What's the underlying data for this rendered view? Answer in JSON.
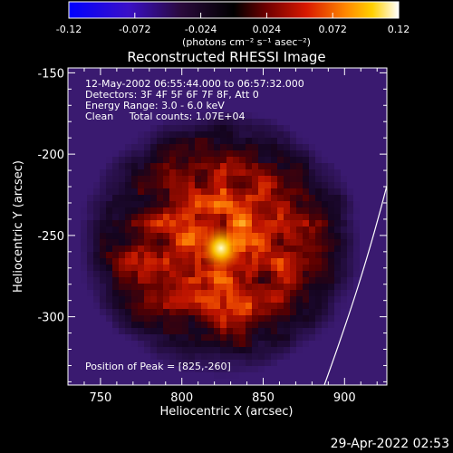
{
  "colorbar": {
    "ticks": [
      "-0.12",
      "-0.072",
      "-0.024",
      "0.024",
      "0.072",
      "0.12"
    ],
    "unit_label": "(photons cm⁻² s⁻¹ asec⁻²)",
    "range": [
      -0.12,
      0.12
    ]
  },
  "annotations": {
    "time_range": "12-May-2002 06:55:44.000 to 06:57:32.000",
    "detectors": "Detectors: 3F 4F 5F 6F 7F 8F, Att 0",
    "energy": "Energy Range: 3.0 - 6.0 keV",
    "clean": "Clean     Total counts: 1.07E+04",
    "peak": "Position of Peak = [825,-260]"
  },
  "footer": {
    "timestamp": "29-Apr-2022 02:53"
  },
  "chart_data": {
    "type": "heatmap",
    "title": "Reconstructed RHESSI Image",
    "xlabel": "Heliocentric X (arcsec)",
    "ylabel": "Heliocentric Y (arcsec)",
    "x_ticks": [
      "750",
      "800",
      "850",
      "900"
    ],
    "y_ticks": [
      "-150",
      "-200",
      "-250",
      "-300"
    ],
    "x_tick_values": [
      750,
      800,
      850,
      900
    ],
    "y_tick_values": [
      -150,
      -200,
      -250,
      -300
    ],
    "xlim": [
      730,
      926
    ],
    "ylim": [
      -342,
      -147
    ],
    "peak": [
      825,
      -260
    ],
    "colormap": [
      "#0000ff",
      "#4b0082",
      "#000000",
      "#800000",
      "#ff4000",
      "#ffa000",
      "#ffffff"
    ],
    "limb_color": "#ffffff"
  }
}
